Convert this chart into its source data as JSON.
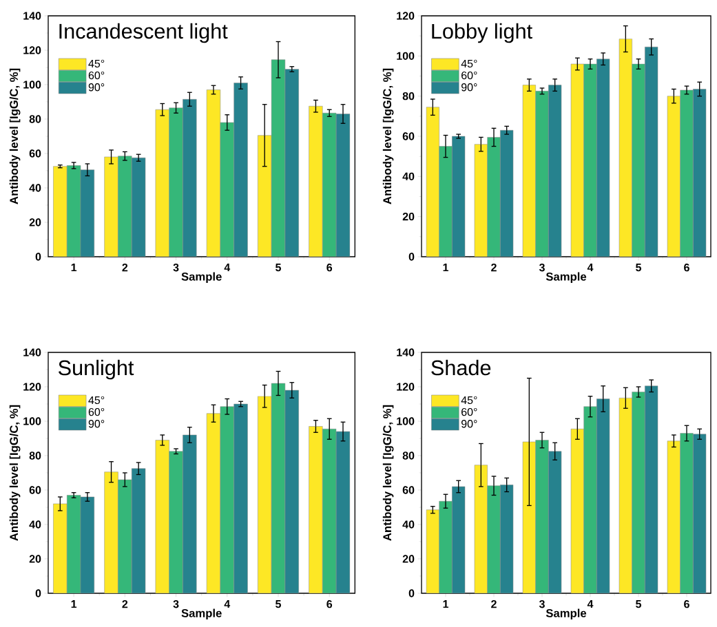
{
  "chart_data": [
    {
      "type": "bar",
      "title": "Incandescent light",
      "xlabel": "Sample",
      "ylabel": "Antibody level [IgG/C, %]",
      "categories": [
        "1",
        "2",
        "3",
        "4",
        "5",
        "6"
      ],
      "ylim": [
        0,
        140
      ],
      "yticks": [
        0,
        20,
        40,
        60,
        80,
        100,
        120,
        140
      ],
      "legend": "top left",
      "series": [
        {
          "name": "45°",
          "color": "#fde725",
          "values": [
            52.5,
            58,
            85.5,
            97,
            70.5,
            87.5
          ],
          "errors": [
            0.8,
            4,
            3.5,
            2.5,
            18,
            3.5
          ]
        },
        {
          "name": "60°",
          "color": "#35b779",
          "values": [
            53,
            58.5,
            86.5,
            78,
            114.5,
            83.5
          ],
          "errors": [
            1.8,
            2.5,
            3,
            4.5,
            10.5,
            2
          ]
        },
        {
          "name": "90°",
          "color": "#26828e",
          "values": [
            50.5,
            57.5,
            91.5,
            101,
            109,
            83
          ],
          "errors": [
            3.5,
            2,
            4,
            3.5,
            1.5,
            5.5
          ]
        }
      ]
    },
    {
      "type": "bar",
      "title": "Lobby light",
      "xlabel": "Sample",
      "ylabel": "Antibody level [IgG/C, %]",
      "categories": [
        "1",
        "2",
        "3",
        "4",
        "5",
        "6"
      ],
      "ylim": [
        0,
        120
      ],
      "yticks": [
        0,
        20,
        40,
        60,
        80,
        100,
        120
      ],
      "legend": "top left",
      "series": [
        {
          "name": "45°",
          "color": "#fde725",
          "values": [
            74.5,
            56,
            85.5,
            96,
            108.5,
            80
          ],
          "errors": [
            4,
            3.5,
            3,
            3,
            6.5,
            3.5
          ]
        },
        {
          "name": "60°",
          "color": "#35b779",
          "values": [
            55,
            59.5,
            82.5,
            96,
            96,
            83
          ],
          "errors": [
            5.5,
            4.5,
            1.5,
            2.5,
            2.5,
            2
          ]
        },
        {
          "name": "90°",
          "color": "#26828e",
          "values": [
            60,
            63,
            85.5,
            98.5,
            104.5,
            83.5
          ],
          "errors": [
            1,
            2,
            3,
            3,
            4,
            3.5
          ]
        }
      ]
    },
    {
      "type": "bar",
      "title": "Sunlight",
      "xlabel": "Sample",
      "ylabel": "Antibody level [IgG/C, %]",
      "categories": [
        "1",
        "2",
        "3",
        "4",
        "5",
        "6"
      ],
      "ylim": [
        0,
        140
      ],
      "yticks": [
        0,
        20,
        40,
        60,
        80,
        100,
        120,
        140
      ],
      "legend": "top left",
      "series": [
        {
          "name": "45°",
          "color": "#fde725",
          "values": [
            52,
            70.5,
            89,
            104.5,
            114.5,
            97
          ],
          "errors": [
            4,
            6,
            3,
            5,
            6.5,
            3.5
          ]
        },
        {
          "name": "60°",
          "color": "#35b779",
          "values": [
            57,
            66,
            82.5,
            108.5,
            122,
            95.5
          ],
          "errors": [
            1.5,
            4,
            1.5,
            4.5,
            7,
            6
          ]
        },
        {
          "name": "90°",
          "color": "#26828e",
          "values": [
            56,
            72.5,
            92,
            110,
            118,
            94
          ],
          "errors": [
            2.5,
            3.5,
            4.5,
            1.5,
            4.5,
            5.5
          ]
        }
      ]
    },
    {
      "type": "bar",
      "title": "Shade",
      "xlabel": "Sample",
      "ylabel": "Antibody level [IgG/C, %]",
      "categories": [
        "1",
        "2",
        "3",
        "4",
        "5",
        "6"
      ],
      "ylim": [
        0,
        140
      ],
      "yticks": [
        0,
        20,
        40,
        60,
        80,
        100,
        120,
        140
      ],
      "legend": "top left",
      "series": [
        {
          "name": "45°",
          "color": "#fde725",
          "values": [
            48.5,
            74.5,
            88,
            95.5,
            113.5,
            88.5
          ],
          "errors": [
            2,
            12.5,
            37,
            6,
            6,
            3.5
          ]
        },
        {
          "name": "60°",
          "color": "#35b779",
          "values": [
            53.5,
            62.5,
            89,
            108.5,
            117,
            93
          ],
          "errors": [
            4,
            5.5,
            4.5,
            6,
            3,
            4.5
          ]
        },
        {
          "name": "90°",
          "color": "#26828e",
          "values": [
            62,
            63,
            82.5,
            113,
            120.5,
            92.5
          ],
          "errors": [
            3.5,
            4,
            5,
            7.5,
            3.5,
            3
          ]
        }
      ]
    }
  ]
}
